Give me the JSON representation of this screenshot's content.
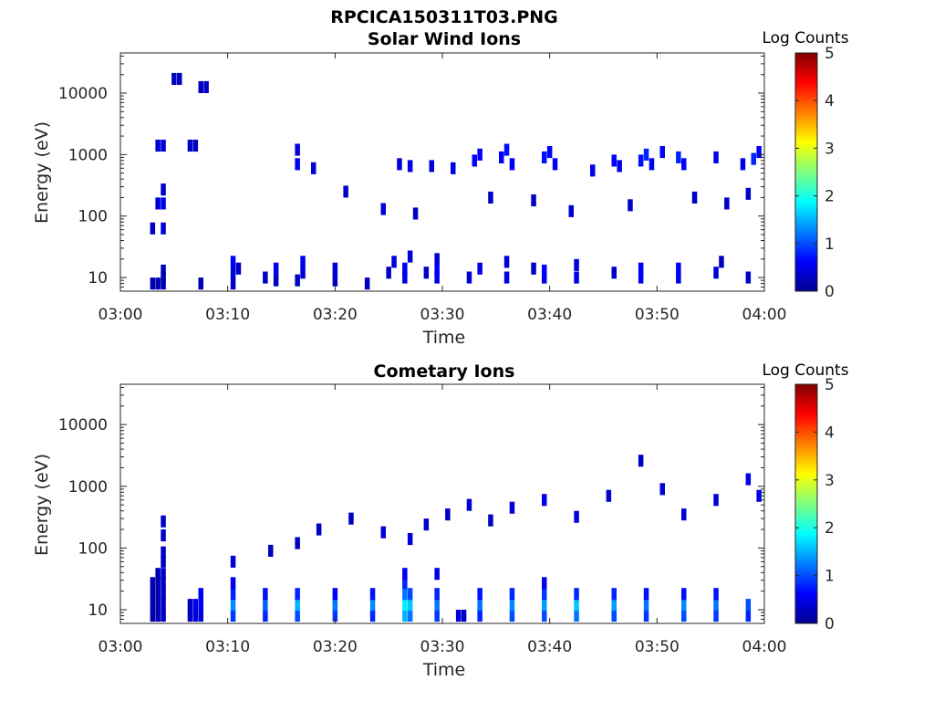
{
  "figure_title": "RPCICA150311T03.PNG",
  "colormap": [
    "#00008f",
    "#0000ff",
    "#00ffff",
    "#ffff00",
    "#ff0000",
    "#800000"
  ],
  "chart_data": [
    {
      "type": "heatmap",
      "title": "Solar Wind Ions",
      "xlabel": "Time",
      "ylabel": "Energy (eV)",
      "x_ticks": [
        "03:00",
        "03:10",
        "03:20",
        "03:30",
        "03:40",
        "03:50",
        "04:00"
      ],
      "y_ticks": [
        "10",
        "100",
        "1000",
        "10000"
      ],
      "y_scale": "log",
      "xlim_minutes": [
        0,
        60
      ],
      "ylim": [
        6,
        45000
      ],
      "colorbar": {
        "label": "Log Counts",
        "ticks": [
          "0",
          "1",
          "2",
          "3",
          "4",
          "5"
        ],
        "range": [
          0,
          5
        ]
      },
      "cells": [
        [
          3.0,
          8.0,
          0.2
        ],
        [
          3.5,
          8.0,
          0.2
        ],
        [
          4.0,
          8.0,
          0.2
        ],
        [
          4.0,
          10.0,
          0.2
        ],
        [
          4.0,
          13.0,
          0.2
        ],
        [
          7.5,
          8.0,
          0.2
        ],
        [
          10.5,
          8.0,
          0.3
        ],
        [
          10.5,
          12.0,
          0.4
        ],
        [
          10.5,
          18.0,
          0.6
        ],
        [
          11.0,
          14.0,
          0.3
        ],
        [
          13.5,
          10.0,
          0.3
        ],
        [
          14.5,
          14.0,
          0.5
        ],
        [
          14.5,
          9.0,
          0.3
        ],
        [
          16.5,
          9.0,
          0.3
        ],
        [
          17.0,
          12.0,
          0.4
        ],
        [
          17.0,
          18.0,
          0.5
        ],
        [
          20.0,
          9.0,
          0.3
        ],
        [
          20.0,
          14.0,
          0.4
        ],
        [
          23.0,
          8.0,
          0.3
        ],
        [
          25.0,
          12.0,
          0.3
        ],
        [
          25.5,
          18.0,
          0.4
        ],
        [
          26.5,
          10.0,
          0.5
        ],
        [
          26.5,
          14.0,
          0.6
        ],
        [
          27.0,
          22.0,
          0.4
        ],
        [
          28.5,
          12.0,
          0.3
        ],
        [
          29.5,
          10.0,
          0.5
        ],
        [
          29.5,
          14.0,
          0.6
        ],
        [
          29.5,
          20.0,
          0.4
        ],
        [
          32.5,
          10.0,
          0.4
        ],
        [
          33.5,
          14.0,
          0.5
        ],
        [
          36.0,
          10.0,
          0.5
        ],
        [
          36.0,
          18.0,
          0.4
        ],
        [
          38.5,
          14.0,
          0.3
        ],
        [
          39.5,
          10.0,
          0.5
        ],
        [
          39.5,
          13.0,
          0.6
        ],
        [
          42.5,
          10.0,
          0.5
        ],
        [
          42.5,
          16.0,
          0.4
        ],
        [
          46.0,
          12.0,
          0.3
        ],
        [
          48.5,
          10.0,
          0.5
        ],
        [
          48.5,
          14.0,
          0.6
        ],
        [
          52.0,
          10.0,
          0.5
        ],
        [
          52.0,
          14.0,
          0.6
        ],
        [
          55.5,
          12.0,
          0.4
        ],
        [
          56.0,
          18.0,
          0.3
        ],
        [
          58.5,
          10.0,
          0.3
        ],
        [
          3.0,
          63.0,
          0.3
        ],
        [
          3.5,
          160.0,
          0.4
        ],
        [
          4.0,
          160.0,
          0.5
        ],
        [
          4.0,
          270.0,
          0.3
        ],
        [
          4.0,
          63.0,
          0.4
        ],
        [
          3.5,
          1400.0,
          0.4
        ],
        [
          4.0,
          1400.0,
          0.4
        ],
        [
          6.5,
          1400.0,
          0.3
        ],
        [
          7.0,
          1400.0,
          0.3
        ],
        [
          5.0,
          17000.0,
          0.3
        ],
        [
          5.5,
          17000.0,
          0.3
        ],
        [
          7.5,
          12500.0,
          0.3
        ],
        [
          8.0,
          12500.0,
          0.3
        ],
        [
          16.5,
          700.0,
          0.5
        ],
        [
          16.5,
          1200.0,
          0.4
        ],
        [
          18.0,
          600.0,
          0.4
        ],
        [
          26.0,
          700.0,
          0.4
        ],
        [
          27.0,
          650.0,
          0.5
        ],
        [
          29.0,
          650.0,
          0.4
        ],
        [
          31.0,
          600.0,
          0.5
        ],
        [
          33.0,
          800.0,
          0.6
        ],
        [
          33.5,
          1000.0,
          0.6
        ],
        [
          35.5,
          900.0,
          0.6
        ],
        [
          36.0,
          1200.0,
          0.7
        ],
        [
          36.5,
          700.0,
          0.6
        ],
        [
          39.5,
          900.0,
          0.7
        ],
        [
          40.0,
          1100.0,
          0.6
        ],
        [
          40.5,
          700.0,
          0.6
        ],
        [
          44.0,
          550.0,
          0.5
        ],
        [
          46.0,
          800.0,
          0.6
        ],
        [
          46.5,
          650.0,
          0.5
        ],
        [
          48.5,
          800.0,
          0.7
        ],
        [
          49.0,
          1000.0,
          0.8
        ],
        [
          49.5,
          700.0,
          0.6
        ],
        [
          50.5,
          1100.0,
          0.6
        ],
        [
          52.0,
          900.0,
          0.8
        ],
        [
          52.5,
          700.0,
          0.6
        ],
        [
          55.5,
          900.0,
          0.5
        ],
        [
          58.0,
          700.0,
          0.5
        ],
        [
          59.0,
          850.0,
          0.8
        ],
        [
          59.5,
          1100.0,
          0.6
        ],
        [
          21.0,
          250.0,
          0.3
        ],
        [
          24.5,
          130.0,
          0.4
        ],
        [
          27.5,
          110.0,
          0.3
        ],
        [
          34.5,
          200.0,
          0.3
        ],
        [
          38.5,
          180.0,
          0.3
        ],
        [
          42.0,
          120.0,
          0.4
        ],
        [
          47.5,
          150.0,
          0.3
        ],
        [
          53.5,
          200.0,
          0.3
        ],
        [
          56.5,
          160.0,
          0.3
        ],
        [
          58.5,
          230.0,
          0.3
        ]
      ]
    },
    {
      "type": "heatmap",
      "title": "Cometary Ions",
      "xlabel": "Time",
      "ylabel": "Energy (eV)",
      "x_ticks": [
        "03:00",
        "03:10",
        "03:20",
        "03:30",
        "03:40",
        "03:50",
        "04:00"
      ],
      "y_ticks": [
        "10",
        "100",
        "1000",
        "10000"
      ],
      "y_scale": "log",
      "xlim_minutes": [
        0,
        60
      ],
      "ylim": [
        6,
        45000
      ],
      "colorbar": {
        "label": "Log Counts",
        "ticks": [
          "0",
          "1",
          "2",
          "3",
          "4",
          "5"
        ],
        "range": [
          0,
          5
        ]
      },
      "cells": [
        [
          3.0,
          8.0,
          0.2
        ],
        [
          3.0,
          12.0,
          0.2
        ],
        [
          3.0,
          18.0,
          0.2
        ],
        [
          3.0,
          27.0,
          0.2
        ],
        [
          3.5,
          8.0,
          0.2
        ],
        [
          3.5,
          12.0,
          0.2
        ],
        [
          3.5,
          18.0,
          0.2
        ],
        [
          3.5,
          27.0,
          0.2
        ],
        [
          3.5,
          38.0,
          0.2
        ],
        [
          4.0,
          8.0,
          0.3
        ],
        [
          4.0,
          12.0,
          0.3
        ],
        [
          4.0,
          18.0,
          0.3
        ],
        [
          4.0,
          27.0,
          0.3
        ],
        [
          4.0,
          38.0,
          0.3
        ],
        [
          4.0,
          60.0,
          0.3
        ],
        [
          4.0,
          85.0,
          0.3
        ],
        [
          4.0,
          160.0,
          0.3
        ],
        [
          4.0,
          270.0,
          0.3
        ],
        [
          6.5,
          8.0,
          0.3
        ],
        [
          6.5,
          12.0,
          0.3
        ],
        [
          7.0,
          8.0,
          0.4
        ],
        [
          7.0,
          12.0,
          0.5
        ],
        [
          7.5,
          8.0,
          0.4
        ],
        [
          7.5,
          12.0,
          0.6
        ],
        [
          7.5,
          18.0,
          0.6
        ],
        [
          10.5,
          8.0,
          0.9
        ],
        [
          10.5,
          12.0,
          1.3
        ],
        [
          10.5,
          18.0,
          0.8
        ],
        [
          10.5,
          27.0,
          0.5
        ],
        [
          13.5,
          8.0,
          0.8
        ],
        [
          13.5,
          12.0,
          1.1
        ],
        [
          13.5,
          18.0,
          0.7
        ],
        [
          16.5,
          8.0,
          1.0
        ],
        [
          16.5,
          12.0,
          1.5
        ],
        [
          16.5,
          18.0,
          0.8
        ],
        [
          20.0,
          8.0,
          0.9
        ],
        [
          20.0,
          12.0,
          1.2
        ],
        [
          20.0,
          18.0,
          0.6
        ],
        [
          23.5,
          8.0,
          0.8
        ],
        [
          23.5,
          12.0,
          1.3
        ],
        [
          23.5,
          18.0,
          0.7
        ],
        [
          26.5,
          8.0,
          1.5
        ],
        [
          26.5,
          12.0,
          1.8
        ],
        [
          26.5,
          18.0,
          1.2
        ],
        [
          26.5,
          27.0,
          0.8
        ],
        [
          26.5,
          38.0,
          0.6
        ],
        [
          27.0,
          8.0,
          1.2
        ],
        [
          27.0,
          12.0,
          1.6
        ],
        [
          27.0,
          18.0,
          1.0
        ],
        [
          29.5,
          8.0,
          0.9
        ],
        [
          29.5,
          12.0,
          1.2
        ],
        [
          29.5,
          18.0,
          0.8
        ],
        [
          29.5,
          38.0,
          0.5
        ],
        [
          31.5,
          8.0,
          0.4
        ],
        [
          32.0,
          8.0,
          0.3
        ],
        [
          33.5,
          8.0,
          0.8
        ],
        [
          33.5,
          12.0,
          1.2
        ],
        [
          33.5,
          18.0,
          0.7
        ],
        [
          36.5,
          8.0,
          1.0
        ],
        [
          36.5,
          12.0,
          1.3
        ],
        [
          36.5,
          18.0,
          0.8
        ],
        [
          39.5,
          8.0,
          1.0
        ],
        [
          39.5,
          12.0,
          1.4
        ],
        [
          39.5,
          18.0,
          0.9
        ],
        [
          39.5,
          27.0,
          0.5
        ],
        [
          42.5,
          8.0,
          1.2
        ],
        [
          42.5,
          12.0,
          1.6
        ],
        [
          42.5,
          18.0,
          0.8
        ],
        [
          46.0,
          8.0,
          1.0
        ],
        [
          46.0,
          12.0,
          1.4
        ],
        [
          46.0,
          18.0,
          0.8
        ],
        [
          49.0,
          8.0,
          0.9
        ],
        [
          49.0,
          12.0,
          1.2
        ],
        [
          49.0,
          18.0,
          0.7
        ],
        [
          52.5,
          8.0,
          1.0
        ],
        [
          52.5,
          12.0,
          1.3
        ],
        [
          52.5,
          18.0,
          0.7
        ],
        [
          55.5,
          8.0,
          0.9
        ],
        [
          55.5,
          12.0,
          1.2
        ],
        [
          55.5,
          18.0,
          0.7
        ],
        [
          58.5,
          8.0,
          0.8
        ],
        [
          58.5,
          12.0,
          1.0
        ],
        [
          10.5,
          60.0,
          0.4
        ],
        [
          14.0,
          90.0,
          0.3
        ],
        [
          16.5,
          120.0,
          0.3
        ],
        [
          18.5,
          200.0,
          0.3
        ],
        [
          21.5,
          300.0,
          0.3
        ],
        [
          24.5,
          180.0,
          0.4
        ],
        [
          27.0,
          140.0,
          0.4
        ],
        [
          28.5,
          240.0,
          0.3
        ],
        [
          30.5,
          350.0,
          0.3
        ],
        [
          32.5,
          500.0,
          0.4
        ],
        [
          34.5,
          280.0,
          0.3
        ],
        [
          36.5,
          450.0,
          0.4
        ],
        [
          39.5,
          600.0,
          0.5
        ],
        [
          42.5,
          320.0,
          0.4
        ],
        [
          45.5,
          700.0,
          0.4
        ],
        [
          48.5,
          2600.0,
          0.3
        ],
        [
          50.5,
          900.0,
          0.4
        ],
        [
          52.5,
          350.0,
          0.4
        ],
        [
          55.5,
          600.0,
          0.4
        ],
        [
          58.5,
          1300.0,
          0.5
        ],
        [
          59.5,
          700.0,
          0.5
        ]
      ]
    }
  ]
}
